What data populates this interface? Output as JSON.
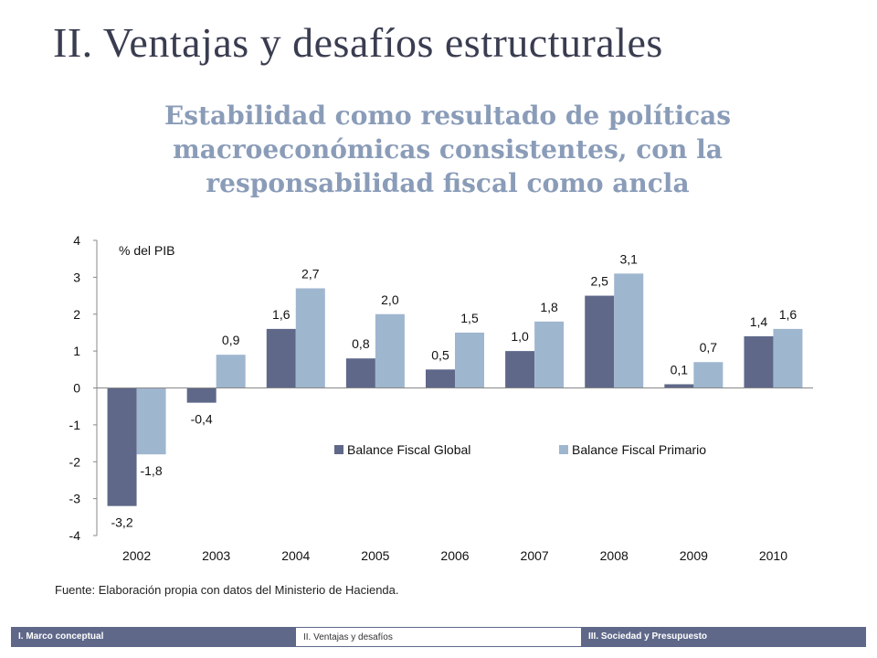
{
  "slide": {
    "title": "II. Ventajas y desafíos estructurales",
    "subtitle": "Estabilidad como resultado de políticas macroeconómicas consistentes, con la responsabilidad fiscal como ancla",
    "source": "Fuente: Elaboración propia con datos del Ministerio de Hacienda."
  },
  "footer": {
    "tabs": [
      {
        "label": "I. Marco conceptual"
      },
      {
        "label": "II. Ventajas y desafíos"
      },
      {
        "label": "III. Sociedad y Presupuesto"
      }
    ]
  },
  "chart_data": {
    "type": "bar",
    "ylabel": "% del PIB",
    "categories": [
      "2002",
      "2003",
      "2004",
      "2005",
      "2006",
      "2007",
      "2008",
      "2009",
      "2010"
    ],
    "ylim": [
      -4,
      4
    ],
    "yticks": [
      "4",
      "3",
      "2",
      "1",
      "0",
      "-1",
      "-2",
      "-3",
      "-4"
    ],
    "grid": false,
    "legend_position": "bottom-right",
    "series": [
      {
        "name": "Balance Fiscal Global",
        "color": "#5f6889",
        "values": [
          -3.2,
          -0.4,
          1.6,
          0.8,
          0.5,
          1.0,
          2.5,
          0.1,
          1.4
        ],
        "labels": [
          "-3,2",
          "-0,4",
          "1,6",
          "0,8",
          "0,5",
          "1,0",
          "2,5",
          "0,1",
          "1,4"
        ]
      },
      {
        "name": "Balance Fiscal Primario",
        "color": "#9fb6cf",
        "values": [
          -1.8,
          0.9,
          2.7,
          2.0,
          1.5,
          1.8,
          3.1,
          0.7,
          1.6
        ],
        "labels": [
          "-1,8",
          "0,9",
          "2,7",
          "2,0",
          "1,5",
          "1,8",
          "3,1",
          "0,7",
          "1,6"
        ]
      }
    ]
  }
}
